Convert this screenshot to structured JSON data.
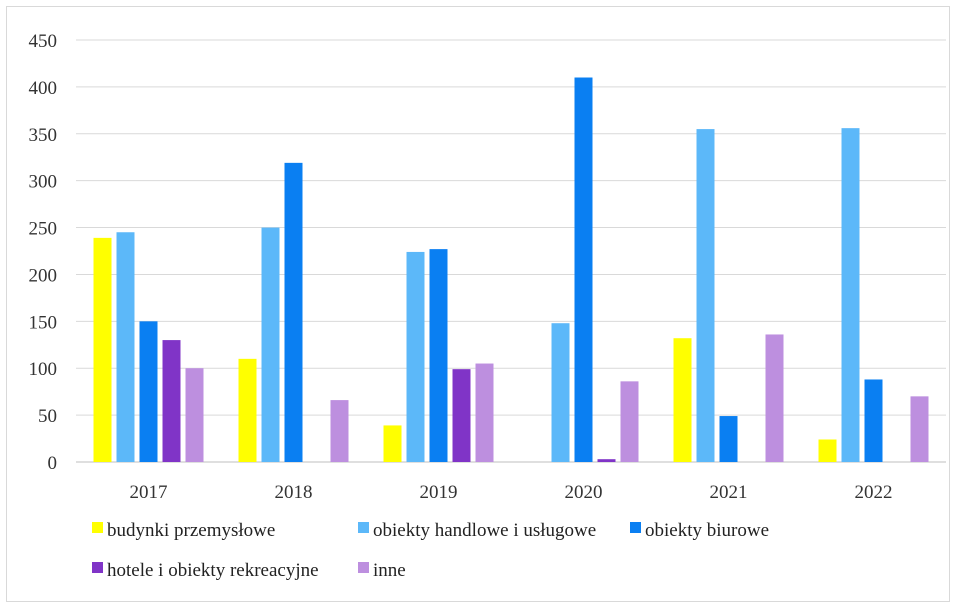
{
  "chart_data": {
    "type": "bar",
    "title": "",
    "xlabel": "",
    "ylabel": "",
    "categories": [
      "2017",
      "2018",
      "2019",
      "2020",
      "2021",
      "2022"
    ],
    "ylim": [
      0,
      450
    ],
    "yticks": [
      0,
      50,
      100,
      150,
      200,
      250,
      300,
      350,
      400,
      450
    ],
    "grid": true,
    "legend_position": "bottom",
    "series": [
      {
        "name": "budynki przemysłowe",
        "color": "#ffff00",
        "values": [
          239,
          110,
          39,
          0,
          132,
          24
        ]
      },
      {
        "name": "obiekty handlowe i usługowe",
        "color": "#5cb8f9",
        "values": [
          245,
          250,
          224,
          148,
          355,
          356
        ]
      },
      {
        "name": "obiekty biurowe",
        "color": "#0a7ff2",
        "values": [
          150,
          319,
          227,
          410,
          49,
          88
        ]
      },
      {
        "name": "hotele i obiekty rekreacyjne",
        "color": "#8034c7",
        "values": [
          130,
          0,
          99,
          3,
          0,
          0
        ]
      },
      {
        "name": "inne",
        "color": "#bd8fdf",
        "values": [
          100,
          66,
          105,
          86,
          136,
          70
        ]
      }
    ]
  }
}
